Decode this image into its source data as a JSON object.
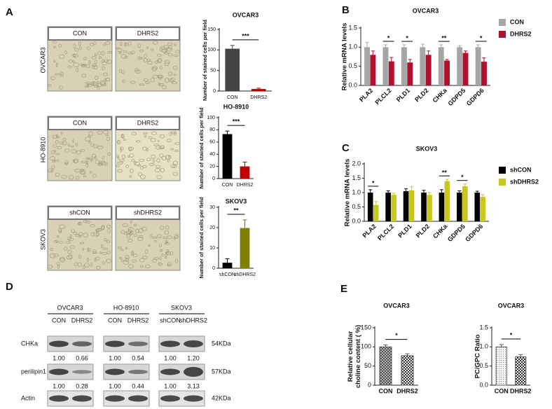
{
  "panel_labels": [
    "A",
    "B",
    "C",
    "D",
    "E"
  ],
  "micrographs": {
    "rows": [
      {
        "cell_line": "OVCAR3",
        "labels": [
          "CON",
          "DHRS2"
        ]
      },
      {
        "cell_line": "HO-8910",
        "labels": [
          "CON",
          "DHRS2"
        ]
      },
      {
        "cell_line": "SKOV3",
        "labels": [
          "shCON",
          "shDHRS2"
        ]
      }
    ]
  },
  "western": {
    "groups": [
      {
        "cell_line": "OVCAR3",
        "lanes": [
          "CON",
          "DHRS2"
        ]
      },
      {
        "cell_line": "HO-8910",
        "lanes": [
          "CON",
          "DHRS2"
        ]
      },
      {
        "cell_line": "SKOV3",
        "lanes": [
          "shCON",
          "shDHRS2"
        ]
      }
    ],
    "rows": [
      {
        "name": "CHKa",
        "size": "54KDa",
        "values": [
          [
            "1.00",
            "0.66"
          ],
          [
            "1.00",
            "0.54"
          ],
          [
            "1.00",
            "1.20"
          ]
        ]
      },
      {
        "name": "perilipin1",
        "size": "57KDa",
        "values": [
          [
            "1.00",
            "0.28"
          ],
          [
            "1.00",
            "0.44"
          ],
          [
            "1.00",
            "3.13"
          ]
        ]
      },
      {
        "name": "Actin",
        "size": "42KDa"
      }
    ]
  },
  "chart_data": [
    {
      "type": "bar",
      "title": "OVCAR3",
      "ylabel": "Number of stained cells per field",
      "categories": [
        "CON",
        "DHRS2"
      ],
      "values": [
        103,
        5
      ],
      "errors": [
        8,
        2
      ],
      "colors": [
        "#444444",
        "#c00000"
      ],
      "ylim": [
        0,
        150
      ],
      "yticks": [
        0,
        50,
        100,
        150
      ],
      "significance": "***"
    },
    {
      "type": "bar",
      "title": "HO-8910",
      "ylabel": "Number of stained cells per field",
      "categories": [
        "CON",
        "DHRS2"
      ],
      "values": [
        73,
        20
      ],
      "errors": [
        5,
        7
      ],
      "colors": [
        "#000000",
        "#c00000"
      ],
      "ylim": [
        0,
        100
      ],
      "yticks": [
        0,
        20,
        40,
        60,
        80,
        100
      ],
      "significance": "***"
    },
    {
      "type": "bar",
      "title": "SKOV3",
      "ylabel": "Number of stained cells per field",
      "categories": [
        "shCON",
        "shDHRS2"
      ],
      "values": [
        2.7,
        19.8
      ],
      "errors": [
        2,
        4
      ],
      "colors": [
        "#000000",
        "#7f7f00"
      ],
      "ylim": [
        0,
        30
      ],
      "yticks": [
        0,
        10,
        20,
        30
      ],
      "significance": "**"
    },
    {
      "type": "grouped-bar",
      "title": "OVCAR3",
      "ylabel": "Relative mRNA levels",
      "categories": [
        "PLA2",
        "PLCL2",
        "PLD1",
        "PLD2",
        "CHKa",
        "GDPD5",
        "GDPD6"
      ],
      "series": [
        {
          "name": "CON",
          "color": "#a6a6a6",
          "values": [
            1,
            1,
            1,
            1,
            1,
            1,
            1
          ],
          "errors": [
            0.12,
            0.06,
            0.06,
            0.08,
            0.06,
            0.04,
            0.06
          ]
        },
        {
          "name": "DHRS2",
          "color": "#b2102f",
          "values": [
            0.8,
            0.63,
            0.6,
            0.8,
            0.65,
            0.85,
            0.62
          ],
          "errors": [
            0.1,
            0.1,
            0.08,
            0.1,
            0.03,
            0.05,
            0.1
          ]
        }
      ],
      "significance": [
        null,
        "*",
        "*",
        null,
        "**",
        null,
        "*"
      ],
      "ylim": [
        0,
        1.5
      ],
      "yticks": [
        {
          "value": 0,
          "label": "0.0"
        },
        {
          "value": 0.5,
          "label": "0.5"
        },
        {
          "value": 1,
          "label": "1.0"
        },
        {
          "value": 1.5,
          "label": "1.5"
        }
      ]
    },
    {
      "type": "grouped-bar",
      "title": "SKOV3",
      "ylabel": "Relative  mRNA levels",
      "categories": [
        "PLA2",
        "PLCL2",
        "PLD1",
        "PLD2",
        "CHKa",
        "GDPD5",
        "GDPD6"
      ],
      "series": [
        {
          "name": "shCON",
          "color": "#000000",
          "values": [
            1,
            1,
            1.05,
            1,
            1,
            1,
            1
          ],
          "errors": [
            0.1,
            0.06,
            0.08,
            0.08,
            0.1,
            0.06,
            0.05
          ]
        },
        {
          "name": "shDHRS2",
          "color": "#c8c81e",
          "values": [
            0.57,
            0.92,
            1.08,
            0.92,
            1.4,
            1.22,
            0.85
          ],
          "errors": [
            0.12,
            0.06,
            0.12,
            0.08,
            0.06,
            0.08,
            0.08
          ]
        }
      ],
      "significance": [
        "*",
        null,
        null,
        null,
        "**",
        "*",
        null
      ],
      "ylim": [
        0,
        2
      ],
      "yticks": [
        {
          "value": 0,
          "label": "0.0"
        },
        {
          "value": 0.5,
          "label": "0.5"
        },
        {
          "value": 1,
          "label": "1.0"
        },
        {
          "value": 1.5,
          "label": "1.5"
        },
        {
          "value": 2,
          "label": "2.0"
        }
      ]
    },
    {
      "type": "bar",
      "title": "OVCAR3",
      "ylabel": [
        "Relative cellular",
        "choline content ( %)"
      ],
      "categories": [
        "CON",
        "DHRS2"
      ],
      "values": [
        100,
        77
      ],
      "errors": [
        5,
        5
      ],
      "colors": [
        "#555555",
        "#555555"
      ],
      "hatches": [
        "crosshatch",
        "checker"
      ],
      "ylim": [
        0,
        150
      ],
      "yticks": [
        0,
        50,
        100,
        150
      ],
      "significance": "*"
    },
    {
      "type": "bar",
      "title": "OVCAR3",
      "ylabel": "PC/GPC Ratio",
      "categories": [
        "CON",
        "DHRS2"
      ],
      "values": [
        1,
        0.74
      ],
      "errors": [
        0.06,
        0.06
      ],
      "colors": [
        "#555555",
        "#555555"
      ],
      "hatches": [
        "dots",
        "checker"
      ],
      "ylim": [
        0,
        1.5
      ],
      "yticks": [
        {
          "value": 0,
          "label": "0.0"
        },
        {
          "value": 0.5,
          "label": "0.5"
        },
        {
          "value": 1,
          "label": "1.0"
        },
        {
          "value": 1.5,
          "label": "1.5"
        }
      ],
      "significance": "*"
    }
  ]
}
